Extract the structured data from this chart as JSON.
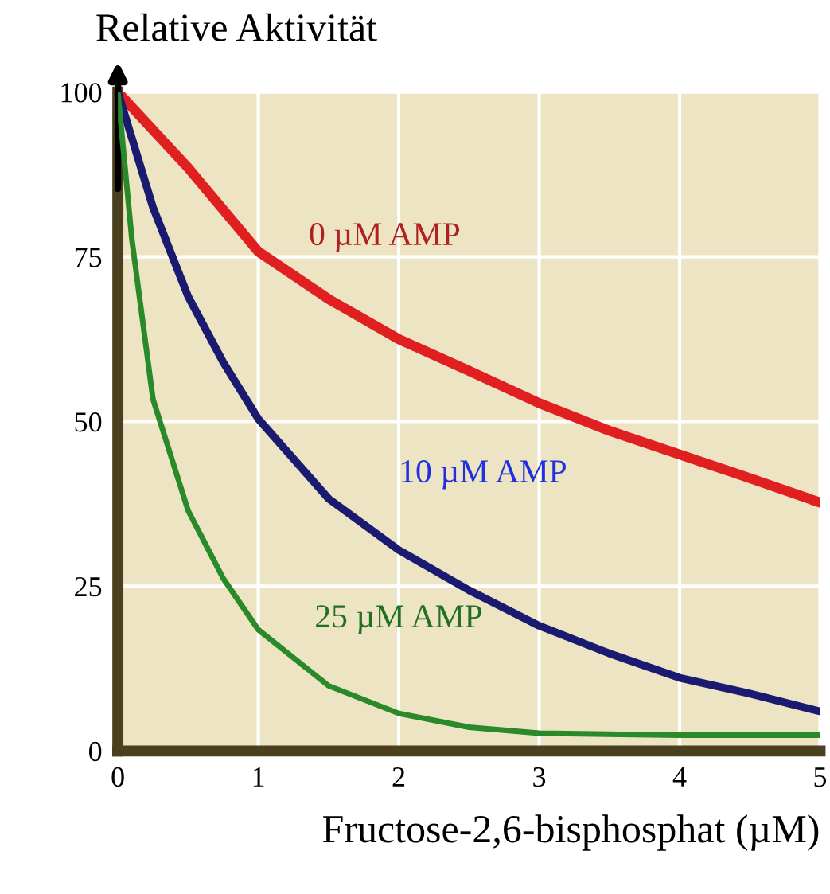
{
  "chart_data": {
    "type": "line",
    "xlabel": "Fructose-2,6-bisphosphat (µM)",
    "ylabel": "Relative Aktivität",
    "xlim": [
      0,
      5
    ],
    "ylim": [
      0,
      100
    ],
    "xticks": [
      0,
      1,
      2,
      3,
      4,
      5
    ],
    "yticks": [
      0,
      25,
      50,
      75,
      100
    ],
    "grid": true,
    "legend": false,
    "series": [
      {
        "name": "0 µM AMP",
        "color": "#e02020",
        "x": [
          0,
          0.5,
          1,
          1.5,
          2,
          2.5,
          3,
          3.5,
          4,
          4.5,
          5
        ],
        "values": [
          100,
          88.5,
          75.8,
          68.6,
          62.5,
          57.7,
          52.8,
          48.6,
          45,
          41.4,
          37.7
        ]
      },
      {
        "name": "10 µM AMP",
        "color": "#1a1a70",
        "x": [
          0,
          0.25,
          0.5,
          0.75,
          1,
          1.5,
          2,
          2.5,
          3,
          3.5,
          4,
          4.5,
          5
        ],
        "values": [
          100,
          82.5,
          69,
          59,
          50.4,
          38.3,
          30.5,
          24.4,
          19,
          14.8,
          11.1,
          8.7,
          6
        ]
      },
      {
        "name": "25 µM AMP",
        "color": "#2a8a2a",
        "x": [
          0,
          0.1,
          0.25,
          0.5,
          0.75,
          1,
          1.5,
          2,
          2.5,
          3,
          4,
          5
        ],
        "values": [
          100,
          77.6,
          53.4,
          36.5,
          26.2,
          18.4,
          9.9,
          5.7,
          3.6,
          2.7,
          2.4,
          2.4
        ]
      }
    ]
  }
}
